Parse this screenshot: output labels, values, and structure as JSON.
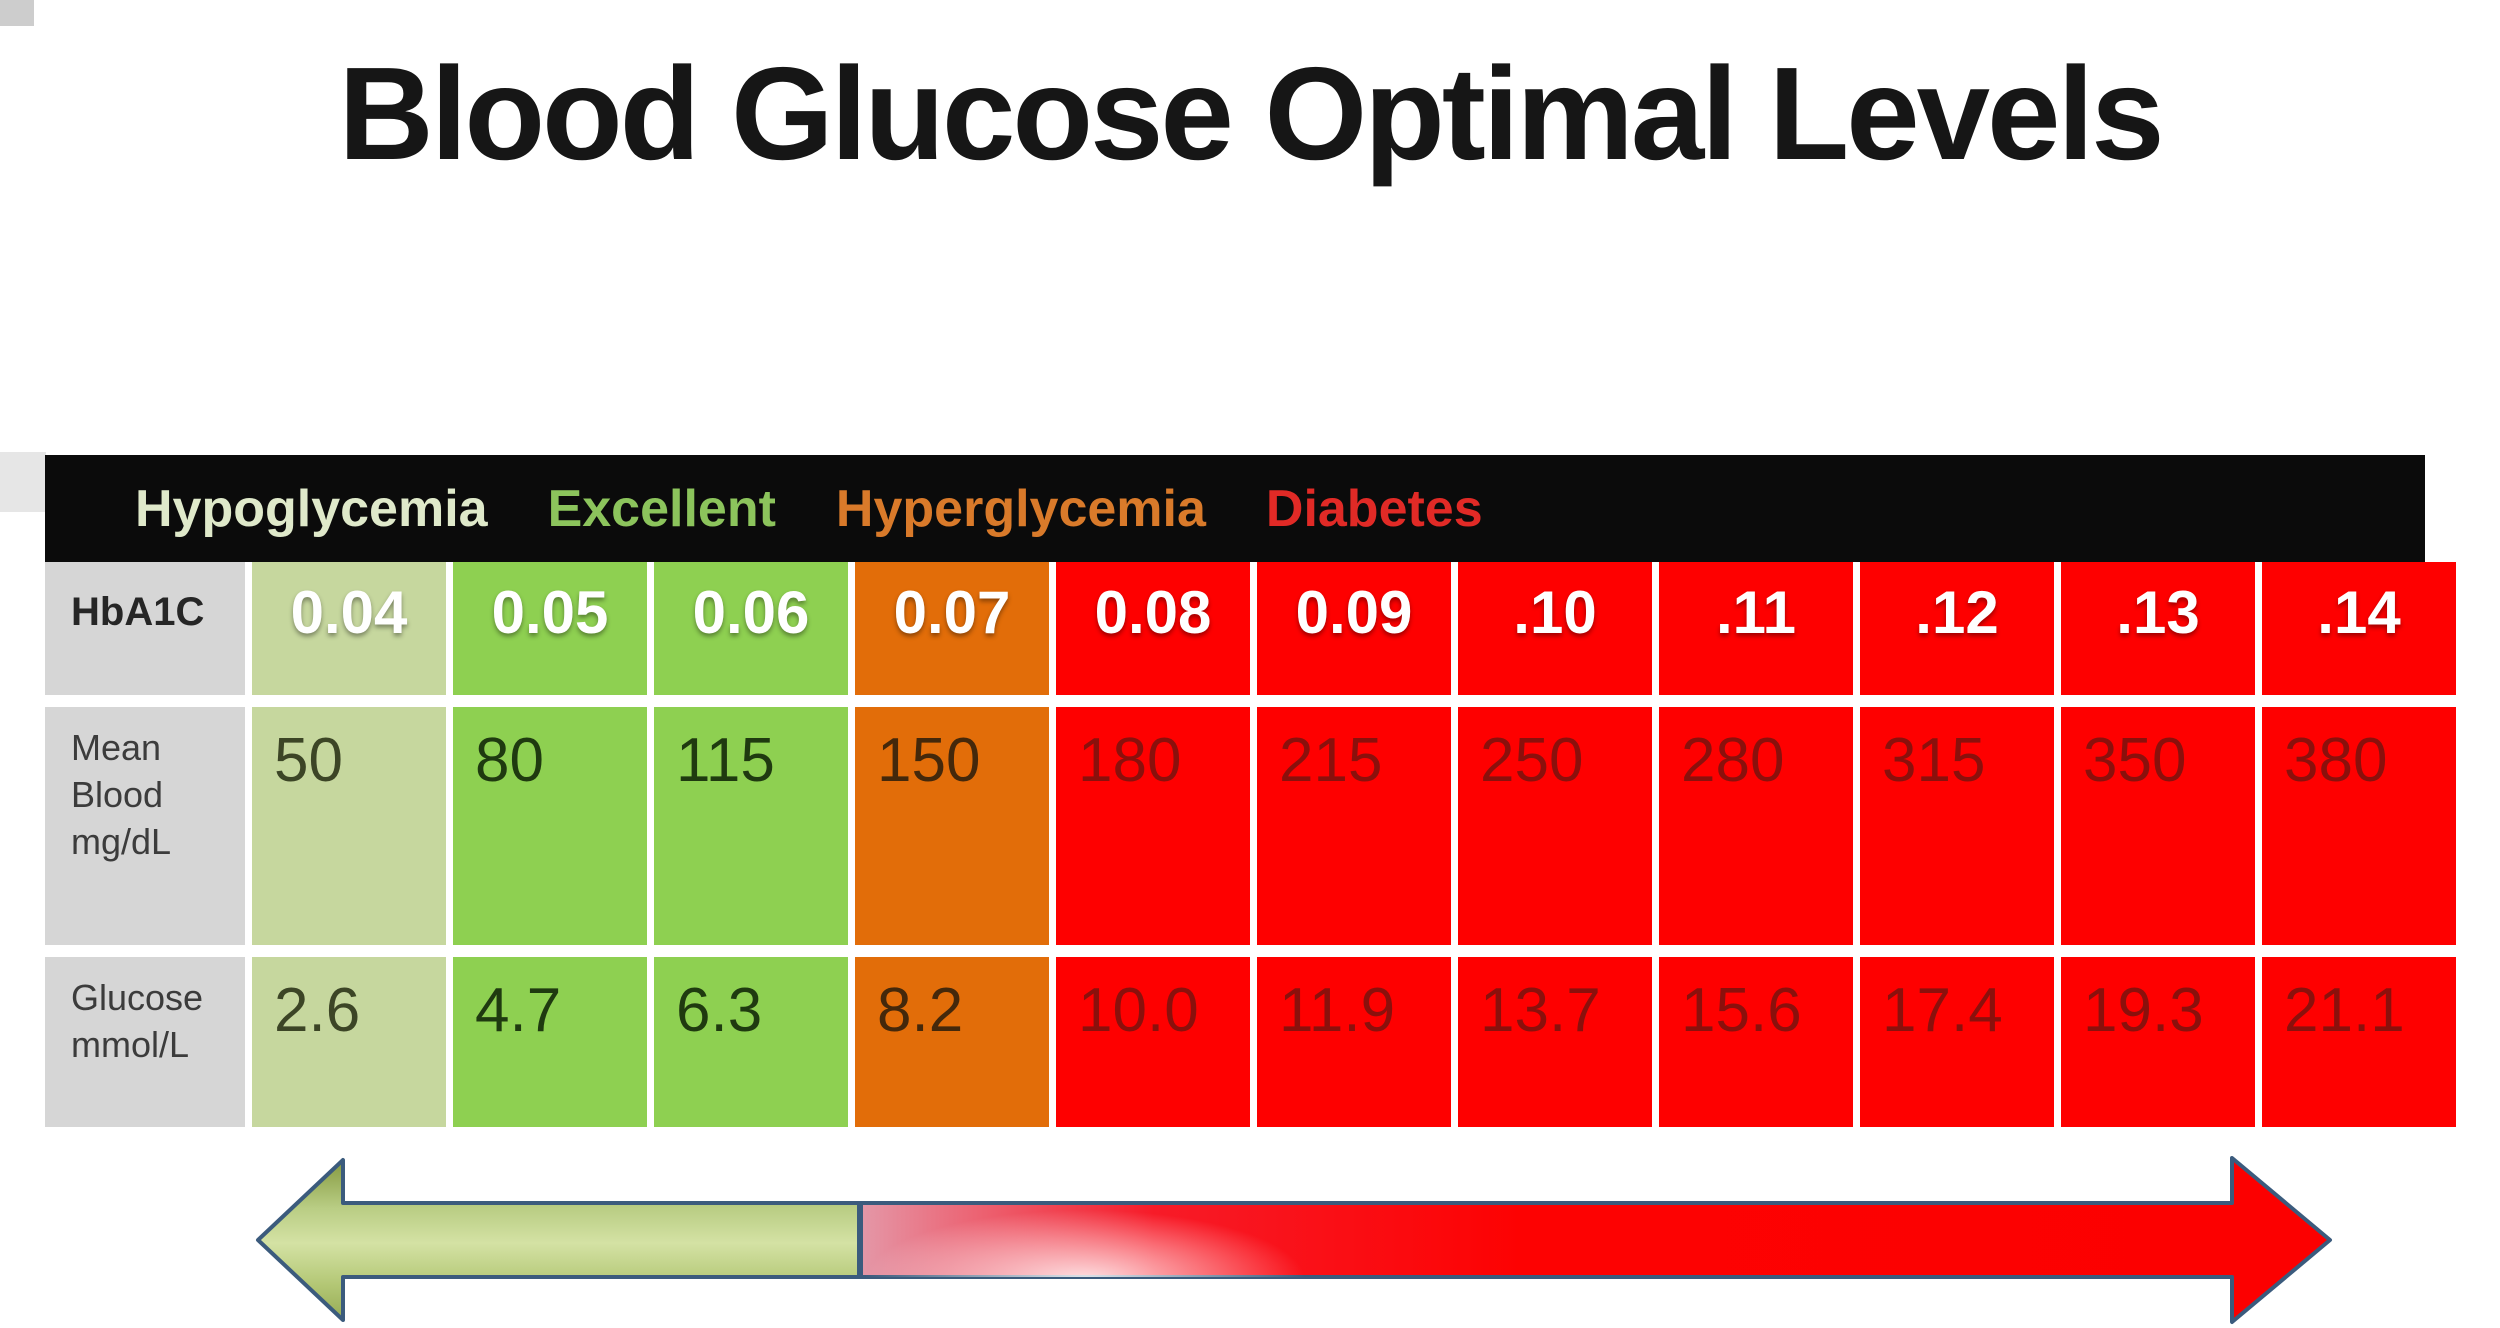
{
  "title": "Blood Glucose Optimal Levels",
  "legend": {
    "items": [
      {
        "label": "Hypoglycemia",
        "color": "#dfe9ca"
      },
      {
        "label": "Excellent",
        "color": "#8cc45c"
      },
      {
        "label": "Hyperglycemia",
        "color": "#d97a2a"
      },
      {
        "label": "Diabetes",
        "color": "#e12a26"
      }
    ]
  },
  "chart_data": {
    "type": "table",
    "title": "Blood Glucose Optimal Levels",
    "row_headers": [
      "HbA1C",
      "Mean Blood mg/dL",
      "Glucose mmol/L"
    ],
    "column_zones": [
      "hypoglycemia",
      "excellent",
      "excellent",
      "hyperglycemia",
      "diabetes",
      "diabetes",
      "diabetes",
      "diabetes",
      "diabetes",
      "diabetes",
      "diabetes"
    ],
    "hba1c": [
      "0.04",
      "0.05",
      "0.06",
      "0.07",
      "0.08",
      "0.09",
      ".10",
      ".11",
      ".12",
      ".13",
      ".14"
    ],
    "mean_blood_mg_dl": [
      "50",
      "80",
      "115",
      "150",
      "180",
      "215",
      "250",
      "280",
      "315",
      "350",
      "380"
    ],
    "glucose_mmol_l": [
      "2.6",
      "4.7",
      "6.3",
      "8.2",
      "10.0",
      "11.9",
      "13.7",
      "15.6",
      "17.4",
      "19.3",
      "21.1"
    ],
    "legend_entries": [
      "Hypoglycemia",
      "Excellent",
      "Hyperglycemia",
      "Diabetes"
    ],
    "layout_hints": {
      "grid": false,
      "legend_position": "top bar",
      "severity_arrow": "double-headed, green (low) to red (high)"
    }
  },
  "table": {
    "row_labels": [
      {
        "key": "hba1c",
        "lines": [
          "HbA1C"
        ]
      },
      {
        "key": "mean_blood_mg_dl",
        "lines": [
          "Mean",
          "Blood",
          "mg/dL"
        ]
      },
      {
        "key": "glucose_mmol_l",
        "lines": [
          "Glucose",
          "mmol/L"
        ]
      }
    ]
  },
  "colors": {
    "zone_fill": {
      "hypoglycemia": "#c6d79e",
      "excellent": "#8ed051",
      "hyperglycemia": "#e26d09",
      "diabetes": "#fe0000"
    },
    "zone_value_text": {
      "hypoglycemia": "#3c4526",
      "excellent": "#1f3a10",
      "hyperglycemia": "#44280b",
      "diabetes": "#8a100c"
    },
    "label_cell": "#d6d6d6",
    "legend_bar": "#0b0b0b",
    "header_text": "#ffffff",
    "arrow_outline": "#3b5b7d",
    "arrow_green_mid": "#d4e2a4",
    "arrow_red": "#fd0000"
  }
}
